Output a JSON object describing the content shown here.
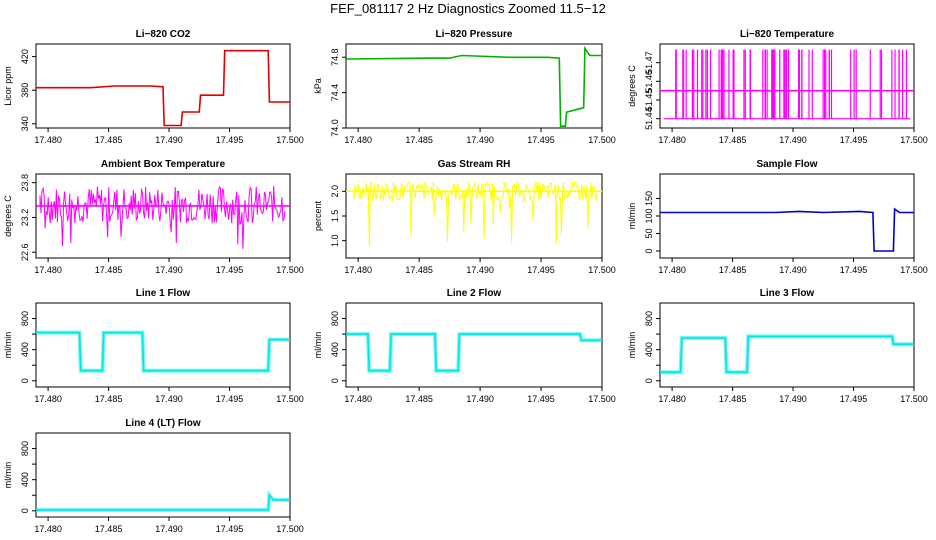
{
  "title": "FEF_081117  2 Hz Diagnostics Zoomed 11.5−12",
  "x_tick_labels": [
    "17.480",
    "17.485",
    "17.490",
    "17.495",
    "17.500"
  ],
  "chart_data": [
    {
      "type": "line",
      "title": "Li−820 CO2",
      "ylabel": "Licor ppm",
      "color": "#e00000",
      "xlim": [
        17.479,
        17.5
      ],
      "ylim": [
        335,
        435
      ],
      "yticks": [
        340,
        380,
        420
      ],
      "ytick_labels": [
        "340",
        "380",
        "420"
      ],
      "series": [
        {
          "x": [
            17.479,
            17.4835,
            17.4855,
            17.4885,
            17.4895,
            17.4896,
            17.491,
            17.4911,
            17.4925,
            17.4926,
            17.4945,
            17.4946,
            17.4982,
            17.4983,
            17.5
          ],
          "y": [
            383,
            383,
            385,
            385,
            384,
            338,
            338,
            354,
            354,
            374,
            374,
            427,
            427,
            366,
            366
          ]
        }
      ]
    },
    {
      "type": "line",
      "title": "Li−820 Pressure",
      "ylabel": "kPa",
      "color": "#00b000",
      "xlim": [
        17.479,
        17.5
      ],
      "ylim": [
        74.0,
        74.95
      ],
      "yticks": [
        74.0,
        74.4,
        74.8
      ],
      "ytick_labels": [
        "74.0",
        "74.4",
        "74.8"
      ],
      "series": [
        {
          "x": [
            17.479,
            17.486,
            17.4875,
            17.4885,
            17.4925,
            17.4955,
            17.4965,
            17.4966,
            17.497,
            17.4971,
            17.4985,
            17.4986,
            17.499,
            17.5
          ],
          "y": [
            74.78,
            74.79,
            74.79,
            74.82,
            74.8,
            74.8,
            74.79,
            74.02,
            74.02,
            74.18,
            74.23,
            74.9,
            74.82,
            74.82
          ]
        }
      ]
    },
    {
      "type": "line",
      "title": "Li−820 Temperature",
      "ylabel": "degrees C",
      "color": "#ff00ff",
      "xlim": [
        17.479,
        17.5
      ],
      "ylim": [
        51.435,
        51.48
      ],
      "yticks": [
        51.44,
        51.45,
        51.46,
        51.47
      ],
      "ytick_labels": [
        "51.44",
        "51.45",
        "51.46",
        "51.47"
      ],
      "series": [
        {
          "x": [
            17.479,
            17.5
          ],
          "y": [
            51.455,
            51.455
          ]
        }
      ]
    },
    {
      "type": "line",
      "title": "Ambient Box Temperature",
      "ylabel": "degrees C",
      "color": "#ff00ff",
      "xlim": [
        17.479,
        17.5
      ],
      "ylim": [
        22.5,
        23.95
      ],
      "yticks": [
        22.6,
        23.2,
        23.8
      ],
      "ytick_labels": [
        "22.6",
        "23.2",
        "23.8"
      ],
      "series": [
        {
          "x": [
            17.479,
            17.5
          ],
          "y": [
            23.4,
            23.4
          ]
        }
      ]
    },
    {
      "type": "line",
      "title": "Gas Stream RH",
      "ylabel": "percent",
      "color": "#ffff00",
      "xlim": [
        17.479,
        17.5
      ],
      "ylim": [
        0.65,
        2.35
      ],
      "yticks": [
        1.0,
        1.5,
        2.0
      ],
      "ytick_labels": [
        "1.0",
        "1.5",
        "2.0"
      ],
      "series": [
        {
          "x": [
            17.479,
            17.5
          ],
          "y": [
            2.0,
            2.0
          ]
        }
      ]
    },
    {
      "type": "line",
      "title": "Sample Flow",
      "ylabel": "ml/min",
      "color": "#0000cc",
      "xlim": [
        17.479,
        17.5
      ],
      "ylim": [
        -20,
        220
      ],
      "yticks": [
        0,
        50,
        100,
        150
      ],
      "ytick_labels": [
        "0",
        "50",
        "100",
        "150"
      ],
      "series": [
        {
          "x": [
            17.479,
            17.4885,
            17.4905,
            17.4925,
            17.4955,
            17.4966,
            17.4967,
            17.4983,
            17.4984,
            17.4988,
            17.5
          ],
          "y": [
            110,
            110,
            113,
            110,
            113,
            110,
            0,
            0,
            120,
            110,
            110
          ]
        }
      ]
    },
    {
      "type": "line",
      "title": "Line 1 Flow",
      "ylabel": "ml/min",
      "color": "#00e5e5",
      "xlim": [
        17.479,
        17.5
      ],
      "ylim": [
        -80,
        1000
      ],
      "yticks": [
        0,
        200,
        400,
        600,
        800
      ],
      "ytick_labels": [
        "0",
        "400",
        "800"
      ],
      "series": [
        {
          "x": [
            17.479,
            17.4826,
            17.4827,
            17.4845,
            17.4846,
            17.4878,
            17.4879,
            17.4982,
            17.4983,
            17.5
          ],
          "y": [
            620,
            620,
            130,
            130,
            620,
            620,
            130,
            130,
            530,
            530
          ]
        }
      ]
    },
    {
      "type": "line",
      "title": "Line 2 Flow",
      "ylabel": "ml/min",
      "color": "#00e5e5",
      "xlim": [
        17.479,
        17.5
      ],
      "ylim": [
        -80,
        1000
      ],
      "yticks": [
        0,
        200,
        400,
        600,
        800
      ],
      "ytick_labels": [
        "0",
        "400",
        "800"
      ],
      "series": [
        {
          "x": [
            17.479,
            17.4808,
            17.4809,
            17.4826,
            17.4827,
            17.4863,
            17.4864,
            17.4882,
            17.4883,
            17.4982,
            17.4983,
            17.5
          ],
          "y": [
            600,
            600,
            130,
            130,
            600,
            600,
            130,
            130,
            600,
            600,
            520,
            520
          ]
        }
      ]
    },
    {
      "type": "line",
      "title": "Line 3 Flow",
      "ylabel": "ml/min",
      "color": "#00e5e5",
      "xlim": [
        17.479,
        17.5
      ],
      "ylim": [
        -80,
        1000
      ],
      "yticks": [
        0,
        200,
        400,
        600,
        800
      ],
      "ytick_labels": [
        "0",
        "400",
        "800"
      ],
      "series": [
        {
          "x": [
            17.479,
            17.4807,
            17.4808,
            17.4844,
            17.4845,
            17.4862,
            17.4863,
            17.4982,
            17.4983,
            17.5
          ],
          "y": [
            110,
            110,
            550,
            550,
            110,
            110,
            570,
            570,
            470,
            470
          ]
        }
      ]
    },
    {
      "type": "line",
      "title": "Line 4 (LT) Flow",
      "ylabel": "ml/min",
      "color": "#00e5e5",
      "xlim": [
        17.479,
        17.5
      ],
      "ylim": [
        -80,
        1000
      ],
      "yticks": [
        0,
        200,
        400,
        600,
        800
      ],
      "ytick_labels": [
        "0",
        "400",
        "800"
      ],
      "series": [
        {
          "x": [
            17.479,
            17.4982,
            17.4983,
            17.4986,
            17.5
          ],
          "y": [
            10,
            10,
            200,
            140,
            140
          ]
        }
      ]
    }
  ]
}
